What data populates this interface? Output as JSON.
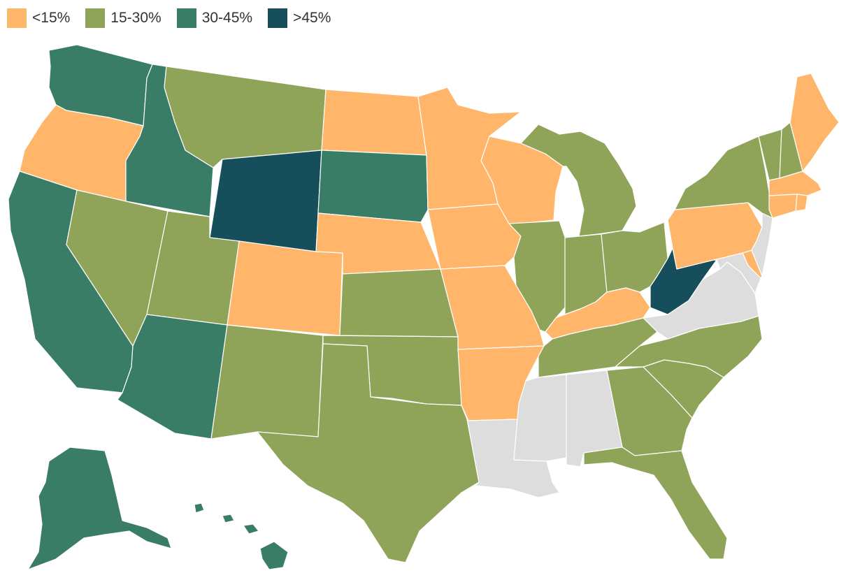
{
  "legend": [
    {
      "label": "<15%",
      "color": "#FFB66B"
    },
    {
      "label": "15-30%",
      "color": "#8FA458"
    },
    {
      "label": "30-45%",
      "color": "#3A7D66"
    },
    {
      "label": ">45%",
      "color": "#164F5B"
    }
  ],
  "colors": {
    "none": "#DDDDDD",
    "lt15": "#FFB66B",
    "b15_30": "#8FA458",
    "b30_45": "#3A7D66",
    "gt45": "#164F5B"
  },
  "states": {
    "WA": "30-45%",
    "OR": "<15%",
    "CA": "30-45%",
    "ID": "30-45%",
    "NV": "15-30%",
    "MT": "15-30%",
    "WY": ">45%",
    "UT": "15-30%",
    "AZ": "30-45%",
    "CO": "<15%",
    "NM": "15-30%",
    "ND": "<15%",
    "SD": "30-45%",
    "NE": "<15%",
    "KS": "15-30%",
    "OK": "15-30%",
    "TX": "15-30%",
    "MN": "<15%",
    "IA": "<15%",
    "MO": "<15%",
    "AR": "<15%",
    "LA": "no data",
    "WI": "<15%",
    "IL": "15-30%",
    "MI": "15-30%",
    "IN": "15-30%",
    "OH": "15-30%",
    "KY": "<15%",
    "TN": "15-30%",
    "MS": "no data",
    "AL": "no data",
    "GA": "15-30%",
    "FL": "15-30%",
    "SC": "15-30%",
    "NC": "15-30%",
    "VA": "no data",
    "WV": ">45%",
    "PA": "<15%",
    "NY": "15-30%",
    "VT": "15-30%",
    "NH": "15-30%",
    "ME": "<15%",
    "MA": "<15%",
    "RI": "<15%",
    "CT": "<15%",
    "NJ": "no data",
    "DE": "<15%",
    "MD": "no data",
    "AK": "30-45%",
    "HI": "30-45%"
  }
}
